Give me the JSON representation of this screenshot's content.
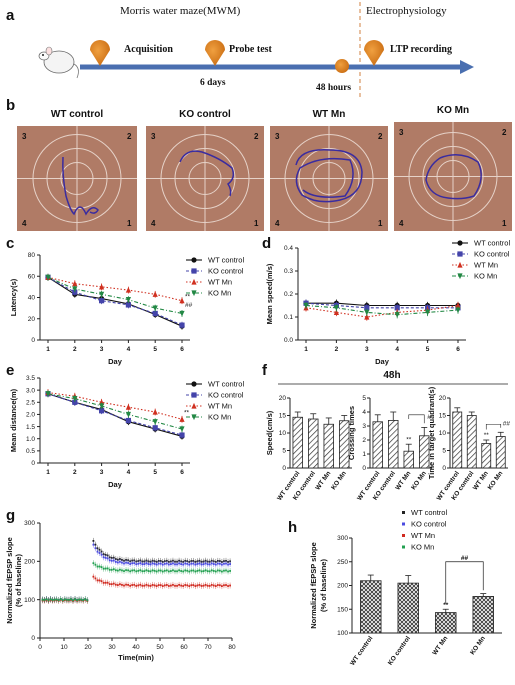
{
  "panel_a": {
    "letter": "a",
    "mwm_label": "Morris water maze(MWM)",
    "ephys_label": "Electrophysiology",
    "steps": [
      "Acquisition",
      "Probe test",
      "LTP recording"
    ],
    "interval_1": "6 days",
    "interval_2": "48 hours"
  },
  "panel_b": {
    "letter": "b",
    "titles": [
      "WT control",
      "KO control",
      "WT Mn",
      "KO Mn"
    ],
    "quadrants": [
      "3",
      "2",
      "4",
      "1"
    ]
  },
  "chart_data": [
    {
      "id": "c",
      "type": "line",
      "x": [
        1,
        2,
        3,
        4,
        5,
        6
      ],
      "xlabel": "Day",
      "ylabel": "Latency(s)",
      "ylim": [
        0,
        80
      ],
      "yticks": [
        "0",
        "20",
        "40",
        "60",
        "80"
      ],
      "xticks": [
        "1",
        "2",
        "3",
        "4",
        "5",
        "6"
      ],
      "legend": "top-right",
      "series": [
        {
          "name": "WT control",
          "color": "#111111",
          "marker": "circle",
          "dash": "",
          "values": [
            59,
            43,
            39,
            34,
            24,
            13
          ]
        },
        {
          "name": "KO control",
          "color": "#4444aa",
          "marker": "square",
          "dash": "3,2",
          "values": [
            59,
            45,
            37,
            33,
            25,
            14
          ]
        },
        {
          "name": "WT Mn",
          "color": "#d03020",
          "marker": "triangle",
          "dash": "1.5,2",
          "values": [
            59,
            53,
            50,
            47,
            43,
            37
          ]
        },
        {
          "name": "KO Mn",
          "color": "#228844",
          "marker": "triangle-down",
          "dash": "4,2,1,2",
          "values": [
            59,
            48,
            43,
            38,
            30,
            25
          ]
        }
      ],
      "annotations": [
        "**",
        "##"
      ]
    },
    {
      "id": "d",
      "type": "line",
      "x": [
        1,
        2,
        3,
        4,
        5,
        6
      ],
      "xlabel": "Day",
      "ylabel": "Mean speed(m/s)",
      "ylim": [
        0,
        0.4
      ],
      "yticks": [
        "0.0",
        "0.1",
        "0.2",
        "0.3",
        "0.4"
      ],
      "xticks": [
        "1",
        "2",
        "3",
        "4",
        "5",
        "6"
      ],
      "legend": "top-right",
      "series": [
        {
          "name": "WT control",
          "color": "#111111",
          "marker": "circle",
          "dash": "",
          "values": [
            0.16,
            0.16,
            0.15,
            0.15,
            0.15,
            0.15
          ]
        },
        {
          "name": "KO control",
          "color": "#4444aa",
          "marker": "square",
          "dash": "3,2",
          "values": [
            0.16,
            0.15,
            0.14,
            0.14,
            0.14,
            0.14
          ]
        },
        {
          "name": "WT Mn",
          "color": "#d03020",
          "marker": "triangle",
          "dash": "1.5,2",
          "values": [
            0.14,
            0.12,
            0.1,
            0.12,
            0.13,
            0.15
          ]
        },
        {
          "name": "KO Mn",
          "color": "#228844",
          "marker": "triangle-down",
          "dash": "4,2,1,2",
          "values": [
            0.15,
            0.14,
            0.12,
            0.11,
            0.12,
            0.13
          ]
        }
      ]
    },
    {
      "id": "e",
      "type": "line",
      "x": [
        1,
        2,
        3,
        4,
        5,
        6
      ],
      "xlabel": "Day",
      "ylabel": "Mean distance(m)",
      "ylim": [
        0,
        3.5
      ],
      "yticks": [
        "0",
        "0.5",
        "1.0",
        "1.5",
        "2.0",
        "2.5",
        "3.0",
        "3.5"
      ],
      "xticks": [
        "1",
        "2",
        "3",
        "4",
        "5",
        "6"
      ],
      "legend": "top-right",
      "series": [
        {
          "name": "WT control",
          "color": "#111111",
          "marker": "circle",
          "dash": "",
          "values": [
            2.85,
            2.5,
            2.2,
            1.7,
            1.4,
            1.1
          ]
        },
        {
          "name": "KO control",
          "color": "#4444aa",
          "marker": "square",
          "dash": "3,2",
          "values": [
            2.85,
            2.5,
            2.15,
            1.75,
            1.45,
            1.15
          ]
        },
        {
          "name": "WT Mn",
          "color": "#d03020",
          "marker": "triangle",
          "dash": "1.5,2",
          "values": [
            2.9,
            2.75,
            2.5,
            2.3,
            2.1,
            1.8
          ]
        },
        {
          "name": "KO Mn",
          "color": "#228844",
          "marker": "triangle-down",
          "dash": "4,2,1,2",
          "values": [
            2.85,
            2.65,
            2.35,
            2.0,
            1.7,
            1.4
          ]
        }
      ],
      "annotations": [
        "**"
      ]
    },
    {
      "id": "f1",
      "type": "bar",
      "categories": [
        "WT control",
        "KO control",
        "WT Mn",
        "KO Mn"
      ],
      "values": [
        14.5,
        14,
        12.5,
        13.5
      ],
      "errors": [
        1.5,
        1.5,
        1.8,
        1.5
      ],
      "ylabel": "Speed(cm/s)",
      "ylim": [
        0,
        20
      ],
      "yticks": [
        "0",
        "5",
        "10",
        "15",
        "20"
      ]
    },
    {
      "id": "f2",
      "type": "bar",
      "categories": [
        "WT control",
        "KO control",
        "WT Mn",
        "KO Mn"
      ],
      "values": [
        3.3,
        3.4,
        1.2,
        2.3
      ],
      "errors": [
        0.5,
        0.6,
        0.5,
        0.6
      ],
      "ylabel": "Crossing times",
      "ylim": [
        0,
        5
      ],
      "yticks": [
        "0",
        "1",
        "2",
        "3",
        "4",
        "5"
      ],
      "annotations": [
        "**",
        "#"
      ]
    },
    {
      "id": "f3",
      "type": "bar",
      "categories": [
        "WT control",
        "KO control",
        "WT Mn",
        "KO Mn"
      ],
      "values": [
        16,
        15,
        7,
        9
      ],
      "errors": [
        1.2,
        1.0,
        1.0,
        1.2
      ],
      "ylabel": "Time in target quadrant(s)",
      "ylim": [
        0,
        20
      ],
      "yticks": [
        "0",
        "5",
        "10",
        "15",
        "20"
      ],
      "annotations": [
        "**",
        "##"
      ]
    },
    {
      "id": "g",
      "type": "scatter",
      "xlabel": "Time(min)",
      "ylabel": "Normalized fEPSP slope",
      "ylabel2": "(% of baseline)",
      "xlim": [
        0,
        80
      ],
      "ylim": [
        0,
        300
      ],
      "xticks": [
        "0",
        "10",
        "20",
        "30",
        "40",
        "50",
        "60",
        "70",
        "80"
      ],
      "yticks": [
        "0",
        "100",
        "200",
        "300"
      ],
      "legend": "top-right",
      "series": [
        {
          "name": "WT control",
          "color": "#222222",
          "baseline": 100,
          "peak": 255,
          "plateau": 200
        },
        {
          "name": "KO control",
          "color": "#4a4ae0",
          "baseline": 100,
          "peak": 245,
          "plateau": 193
        },
        {
          "name": "WT Mn",
          "color": "#d02a20",
          "baseline": 98,
          "peak": 160,
          "plateau": 137
        },
        {
          "name": "KO Mn",
          "color": "#22a050",
          "baseline": 100,
          "peak": 195,
          "plateau": 175
        }
      ]
    },
    {
      "id": "h",
      "type": "bar",
      "categories": [
        "WT control",
        "KO control",
        "WT Mn",
        "KO Mn"
      ],
      "values": [
        210,
        205,
        143,
        177
      ],
      "errors": [
        12,
        16,
        7,
        6
      ],
      "ylabel": "Normalized fEPSP slope",
      "ylabel2": "(% of baseline)",
      "ylim": [
        100,
        300
      ],
      "yticks": [
        "100",
        "150",
        "200",
        "250",
        "300"
      ],
      "annotations": [
        "**",
        "##"
      ]
    }
  ],
  "panel_f_title": "48h",
  "letters": {
    "c": "c",
    "d": "d",
    "e": "e",
    "f": "f",
    "g": "g",
    "h": "h"
  }
}
